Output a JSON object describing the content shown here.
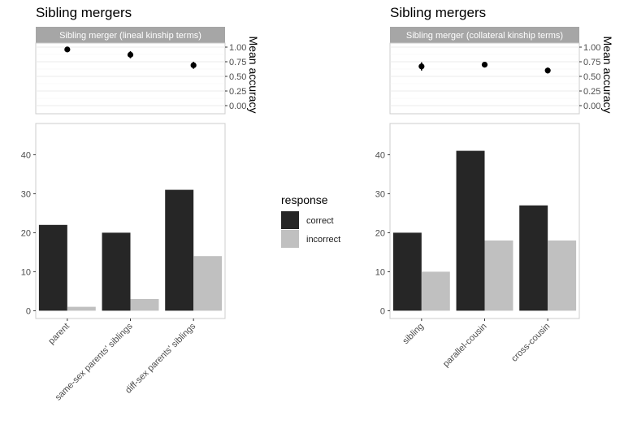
{
  "chart_data": [
    {
      "panel": "left",
      "title": "Sibling mergers",
      "top": {
        "type": "scatter",
        "strip": "Sibling merger (lineal kinship terms)",
        "ylabel": "Mean accuracy",
        "ylim": [
          0,
          1
        ],
        "yticks": [
          "0.00",
          "0.25",
          "0.50",
          "0.75",
          "1.00"
        ],
        "points": [
          {
            "mean": 0.96,
            "lo": 0.93,
            "hi": 0.99
          },
          {
            "mean": 0.87,
            "lo": 0.81,
            "hi": 0.93
          },
          {
            "mean": 0.69,
            "lo": 0.63,
            "hi": 0.75
          }
        ]
      },
      "bottom": {
        "type": "bar",
        "categories": [
          "parent",
          "same-sex parents' siblings",
          "diff-sex parents' siblings"
        ],
        "series": [
          {
            "name": "correct",
            "values": [
              22,
              20,
              31
            ]
          },
          {
            "name": "incorrect",
            "values": [
              1,
              3,
              14
            ]
          }
        ],
        "ylim": [
          -2,
          48
        ],
        "yticks": [
          "0",
          "10",
          "20",
          "30",
          "40"
        ]
      }
    },
    {
      "panel": "right",
      "title": "Sibling mergers",
      "top": {
        "type": "scatter",
        "strip": "Sibling merger (collateral kinship terms)",
        "ylabel": "Mean accuracy",
        "ylim": [
          0,
          1
        ],
        "yticks": [
          "0.00",
          "0.25",
          "0.50",
          "0.75",
          "1.00"
        ],
        "points": [
          {
            "mean": 0.67,
            "lo": 0.6,
            "hi": 0.74
          },
          {
            "mean": 0.7,
            "lo": 0.66,
            "hi": 0.74
          },
          {
            "mean": 0.6,
            "lo": 0.55,
            "hi": 0.65
          }
        ]
      },
      "bottom": {
        "type": "bar",
        "categories": [
          "sibling",
          "parallel-cousin",
          "cross-cousin"
        ],
        "series": [
          {
            "name": "correct",
            "values": [
              20,
              41,
              27
            ]
          },
          {
            "name": "incorrect",
            "values": [
              10,
              18,
              18
            ]
          }
        ],
        "ylim": [
          -2,
          48
        ],
        "yticks": [
          "0",
          "10",
          "20",
          "30",
          "40"
        ]
      }
    }
  ],
  "legend": {
    "title": "response",
    "items": [
      {
        "label": "correct",
        "color": "#262626"
      },
      {
        "label": "incorrect",
        "color": "#c0c0c0"
      }
    ]
  },
  "colors": {
    "correct": "#262626",
    "incorrect": "#c0c0c0",
    "strip_bg": "#a6a6a6",
    "strip_text": "#ffffff",
    "grid": "#ebebeb",
    "panel_border": "#cccccc"
  }
}
